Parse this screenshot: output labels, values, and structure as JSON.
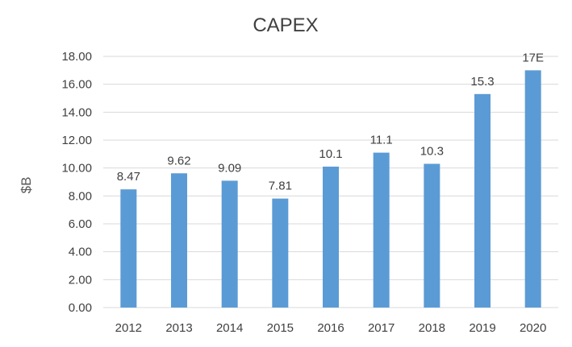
{
  "chart_data": {
    "type": "bar",
    "title": "CAPEX",
    "xlabel": "",
    "ylabel": "$B",
    "ylim": [
      0,
      18
    ],
    "ytick_step": 2,
    "ytick_labels": [
      "0.00",
      "2.00",
      "4.00",
      "6.00",
      "8.00",
      "10.00",
      "12.00",
      "14.00",
      "16.00",
      "18.00"
    ],
    "categories": [
      "2012",
      "2013",
      "2014",
      "2015",
      "2016",
      "2017",
      "2018",
      "2019",
      "2020"
    ],
    "values": [
      8.47,
      9.62,
      9.09,
      7.81,
      10.1,
      11.1,
      10.3,
      15.3,
      17
    ],
    "data_labels": [
      "8.47",
      "9.62",
      "9.09",
      "7.81",
      "10.1",
      "11.1",
      "10.3",
      "15.3",
      "17E"
    ],
    "grid": true,
    "legend": "none",
    "bar_color": "#5b9bd5"
  }
}
